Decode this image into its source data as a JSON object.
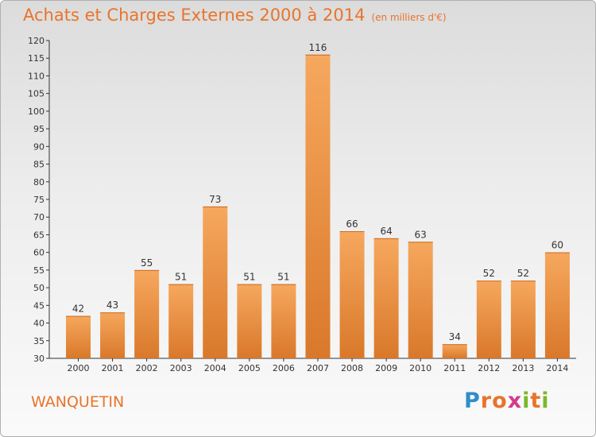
{
  "header": {
    "title": "Achats et Charges Externes 2000 à 2014",
    "unit": "(en milliers d'€)"
  },
  "footer": {
    "commune": "WANQUETIN",
    "logo": {
      "letters": [
        "P",
        "r",
        "o",
        "x",
        "i",
        "t",
        "i"
      ],
      "colors": [
        "#2e8ec8",
        "#e8742b",
        "#e8742b",
        "#d43a8a",
        "#7ab828",
        "#e8742b",
        "#7ab828"
      ]
    }
  },
  "colors": {
    "accent": "#e8742b",
    "bar_top": "#f6a85e",
    "bar_bottom": "#d9782a"
  },
  "chart_data": {
    "type": "bar",
    "title": "Achats et Charges Externes 2000 à 2014",
    "subtitle": "(en milliers d'€)",
    "categories": [
      "2000",
      "2001",
      "2002",
      "2003",
      "2004",
      "2005",
      "2006",
      "2007",
      "2008",
      "2009",
      "2010",
      "2011",
      "2012",
      "2013",
      "2014"
    ],
    "values": [
      42,
      43,
      55,
      51,
      73,
      51,
      51,
      116,
      66,
      64,
      63,
      34,
      52,
      52,
      60
    ],
    "data_labels": [
      "42",
      "43",
      "55",
      "51",
      "73",
      "51",
      "51",
      "116",
      "66",
      "64",
      "63",
      "34",
      "52",
      "52",
      "60"
    ],
    "ylim": [
      30,
      120
    ],
    "yticks": [
      30,
      35,
      40,
      45,
      50,
      55,
      60,
      65,
      70,
      75,
      80,
      85,
      90,
      95,
      100,
      105,
      110,
      115,
      120
    ],
    "xlabel": "",
    "ylabel": "",
    "grid": false,
    "legend": "none"
  }
}
